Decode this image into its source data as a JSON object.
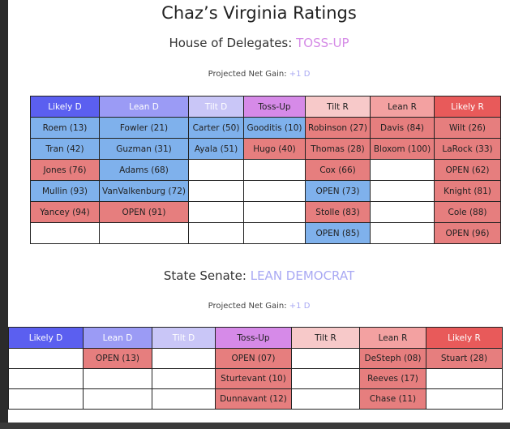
{
  "page": {
    "title": "Chaz’s Virginia Ratings"
  },
  "house": {
    "label": "House of Delegates:",
    "status": "TOSS-UP",
    "net_label": "Projected Net Gain:",
    "net_value": "+1 D",
    "headers": [
      "Likely D",
      "Lean D",
      "Tilt D",
      "Toss-Up",
      "Tilt R",
      "Lean R",
      "Likely R"
    ],
    "rows": [
      [
        {
          "t": "Roem (13)",
          "p": "D"
        },
        {
          "t": "Fowler (21)",
          "p": "D"
        },
        {
          "t": "Carter (50)",
          "p": "D"
        },
        {
          "t": "Gooditis (10)",
          "p": "D"
        },
        {
          "t": "Robinson (27)",
          "p": "R"
        },
        {
          "t": "Davis (84)",
          "p": "R"
        },
        {
          "t": "Wilt (26)",
          "p": "R"
        }
      ],
      [
        {
          "t": "Tran (42)",
          "p": "D"
        },
        {
          "t": "Guzman (31)",
          "p": "D"
        },
        {
          "t": "Ayala (51)",
          "p": "D"
        },
        {
          "t": "Hugo (40)",
          "p": "R"
        },
        {
          "t": "Thomas (28)",
          "p": "R"
        },
        {
          "t": "Bloxom (100)",
          "p": "R"
        },
        {
          "t": "LaRock (33)",
          "p": "R"
        }
      ],
      [
        {
          "t": "Jones (76)",
          "p": "R"
        },
        {
          "t": "Adams (68)",
          "p": "D"
        },
        {
          "t": "",
          "p": ""
        },
        {
          "t": "",
          "p": ""
        },
        {
          "t": "Cox (66)",
          "p": "R"
        },
        {
          "t": "",
          "p": ""
        },
        {
          "t": "OPEN (62)",
          "p": "R"
        }
      ],
      [
        {
          "t": "Mullin (93)",
          "p": "D"
        },
        {
          "t": "VanValkenburg (72)",
          "p": "D"
        },
        {
          "t": "",
          "p": ""
        },
        {
          "t": "",
          "p": ""
        },
        {
          "t": "OPEN (73)",
          "p": "D"
        },
        {
          "t": "",
          "p": ""
        },
        {
          "t": "Knight (81)",
          "p": "R"
        }
      ],
      [
        {
          "t": "Yancey (94)",
          "p": "R"
        },
        {
          "t": "OPEN (91)",
          "p": "R"
        },
        {
          "t": "",
          "p": ""
        },
        {
          "t": "",
          "p": ""
        },
        {
          "t": "Stolle (83)",
          "p": "R"
        },
        {
          "t": "",
          "p": ""
        },
        {
          "t": "Cole (88)",
          "p": "R"
        }
      ],
      [
        {
          "t": "",
          "p": ""
        },
        {
          "t": "",
          "p": ""
        },
        {
          "t": "",
          "p": ""
        },
        {
          "t": "",
          "p": ""
        },
        {
          "t": "OPEN (85)",
          "p": "D"
        },
        {
          "t": "",
          "p": ""
        },
        {
          "t": "OPEN (96)",
          "p": "R"
        }
      ]
    ]
  },
  "senate": {
    "label": "State Senate:",
    "status": "LEAN DEMOCRAT",
    "net_label": "Projected Net Gain:",
    "net_value": "+1 D",
    "headers": [
      "Likely D",
      "Lean D",
      "Tilt D",
      "Toss-Up",
      "Tilt R",
      "Lean R",
      "Likely R"
    ],
    "rows": [
      [
        {
          "t": "",
          "p": ""
        },
        {
          "t": "OPEN (13)",
          "p": "R"
        },
        {
          "t": "",
          "p": ""
        },
        {
          "t": "OPEN (07)",
          "p": "R"
        },
        {
          "t": "",
          "p": ""
        },
        {
          "t": "DeSteph (08)",
          "p": "R"
        },
        {
          "t": "Stuart (28)",
          "p": "R"
        }
      ],
      [
        {
          "t": "",
          "p": ""
        },
        {
          "t": "",
          "p": ""
        },
        {
          "t": "",
          "p": ""
        },
        {
          "t": "Sturtevant (10)",
          "p": "R"
        },
        {
          "t": "",
          "p": ""
        },
        {
          "t": "Reeves (17)",
          "p": "R"
        },
        {
          "t": "",
          "p": ""
        }
      ],
      [
        {
          "t": "",
          "p": ""
        },
        {
          "t": "",
          "p": ""
        },
        {
          "t": "",
          "p": ""
        },
        {
          "t": "Dunnavant (12)",
          "p": "R"
        },
        {
          "t": "",
          "p": ""
        },
        {
          "t": "Chase (11)",
          "p": "R"
        },
        {
          "t": "",
          "p": ""
        }
      ]
    ]
  }
}
